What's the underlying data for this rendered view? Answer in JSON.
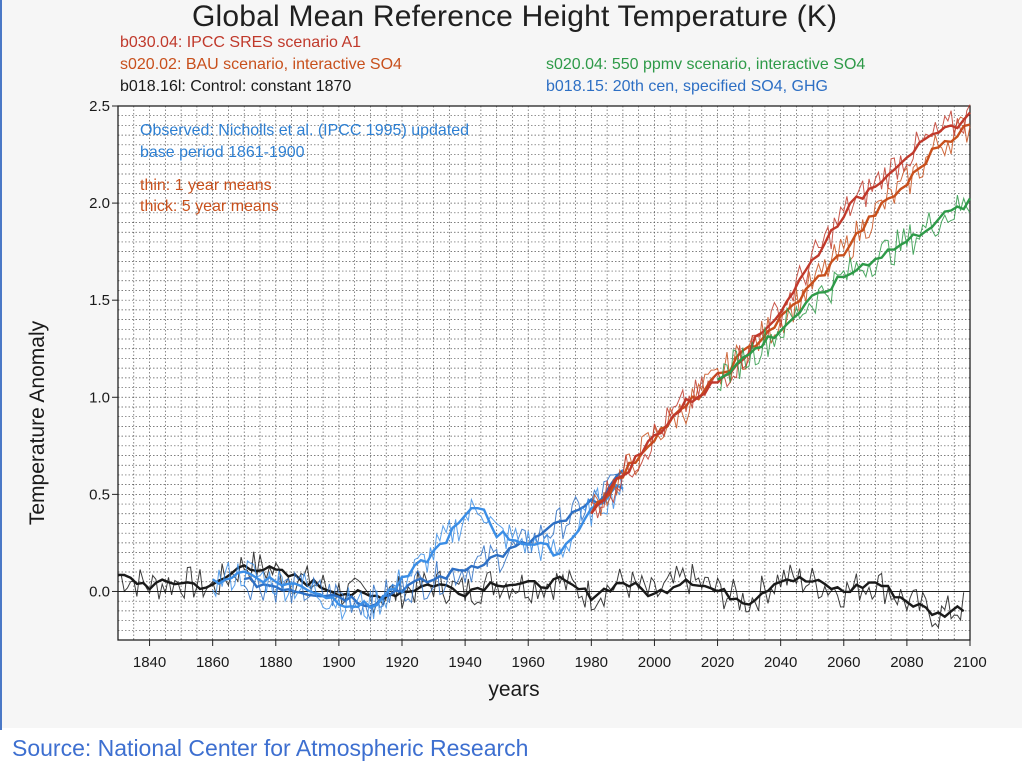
{
  "chart": {
    "title": "Global Mean Reference Height Temperature (K)",
    "legend_left": [
      {
        "label": "b030.04: IPCC SRES scenario A1",
        "color": "#c0392b"
      },
      {
        "label": "s020.02: BAU scenario, interactive SO4",
        "color": "#c8501c"
      },
      {
        "label": "b018.16l: Control: constant 1870",
        "color": "#1a1a1a"
      }
    ],
    "legend_right": [
      {
        "label": "s020.04: 550 ppmv scenario, interactive SO4",
        "color": "#2e9a48"
      },
      {
        "label": "b018.15: 20th cen, specified SO4, GHG",
        "color": "#2d6fc4"
      }
    ],
    "annotations": {
      "observed_line1": "Observed: Nicholls et al. (IPCC 1995) updated",
      "observed_line2": "base period 1861-1900",
      "observed_color": "#2d7fd2",
      "thin_label": "thin: 1 year means",
      "thick_label": "thick: 5 year means",
      "means_color": "#c8501c"
    }
  },
  "chart_data": {
    "type": "line",
    "title": "Global Mean Reference Height Temperature (K)",
    "xlabel": "years",
    "ylabel": "Temperature Anomaly",
    "xlim": [
      1830,
      2100
    ],
    "ylim": [
      -0.25,
      2.5
    ],
    "x_ticks": [
      1840,
      1860,
      1880,
      1900,
      1920,
      1940,
      1960,
      1980,
      2000,
      2020,
      2040,
      2060,
      2080,
      2100
    ],
    "y_ticks": [
      0.0,
      0.5,
      1.0,
      1.5,
      2.0,
      2.5
    ],
    "grid": true,
    "series": [
      {
        "name": "b018.16l: Control: constant 1870",
        "color": "#1a1a1a",
        "x": [
          1830,
          1840,
          1850,
          1860,
          1870,
          1880,
          1890,
          1900,
          1910,
          1920,
          1930,
          1940,
          1950,
          1960,
          1970,
          1980,
          1990,
          2000,
          2010,
          2020,
          2030,
          2040,
          2050,
          2060,
          2070,
          2080,
          2090,
          2098
        ],
        "y": [
          0.08,
          0.03,
          0.05,
          0.02,
          0.14,
          0.1,
          0.05,
          0.0,
          -0.03,
          0.0,
          0.04,
          0.0,
          0.05,
          0.03,
          0.05,
          -0.02,
          0.05,
          -0.02,
          0.07,
          0.0,
          -0.05,
          0.07,
          0.05,
          0.0,
          0.05,
          -0.05,
          -0.12,
          -0.08
        ]
      },
      {
        "name": "b018.15: 20th cen, specified SO4, GHG",
        "color": "#2d6fc4",
        "x": [
          1870,
          1880,
          1890,
          1900,
          1910,
          1920,
          1930,
          1940,
          1950,
          1960,
          1970,
          1980,
          1990
        ],
        "y": [
          0.05,
          0.03,
          0.0,
          -0.02,
          -0.06,
          0.02,
          0.06,
          0.12,
          0.18,
          0.25,
          0.35,
          0.45,
          0.6
        ]
      },
      {
        "name": "Observed: Nicholls et al. (IPCC 1995) updated",
        "color": "#3b8ee6",
        "x": [
          1860,
          1870,
          1880,
          1890,
          1900,
          1910,
          1920,
          1930,
          1940,
          1945,
          1950,
          1960,
          1970,
          1980,
          1990
        ],
        "y": [
          0.05,
          0.1,
          0.05,
          0.02,
          -0.05,
          -0.08,
          0.05,
          0.2,
          0.38,
          0.45,
          0.3,
          0.25,
          0.2,
          0.42,
          0.55
        ]
      },
      {
        "name": "s020.02: BAU scenario, interactive SO4",
        "color": "#c8501c",
        "x": [
          1980,
          1990,
          2000,
          2010,
          2020,
          2030,
          2040,
          2050,
          2060,
          2070,
          2080,
          2090,
          2100
        ],
        "y": [
          0.42,
          0.6,
          0.8,
          0.95,
          1.1,
          1.25,
          1.4,
          1.58,
          1.75,
          1.95,
          2.1,
          2.3,
          2.4
        ]
      },
      {
        "name": "b030.04: IPCC SRES scenario A1",
        "color": "#c0392b",
        "x": [
          1980,
          1990,
          2000,
          2010,
          2020,
          2030,
          2040,
          2050,
          2060,
          2070,
          2080,
          2090,
          2100
        ],
        "y": [
          0.42,
          0.6,
          0.8,
          0.97,
          1.08,
          1.25,
          1.45,
          1.7,
          1.95,
          2.1,
          2.25,
          2.35,
          2.45
        ]
      },
      {
        "name": "s020.04: 550 ppmv scenario, interactive SO4",
        "color": "#2e9a48",
        "x": [
          2020,
          2030,
          2040,
          2050,
          2060,
          2070,
          2080,
          2090,
          2100
        ],
        "y": [
          1.1,
          1.22,
          1.35,
          1.5,
          1.62,
          1.72,
          1.8,
          1.92,
          2.0
        ]
      }
    ]
  },
  "footer": {
    "source": "Source:  National Center for Atmospheric Research"
  }
}
